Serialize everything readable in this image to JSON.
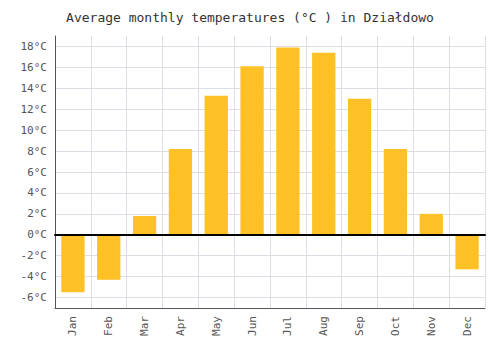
{
  "chart_data": {
    "type": "bar",
    "title": "Average monthly temperatures (°C ) in Działdowo",
    "categories": [
      "Jan",
      "Feb",
      "Mar",
      "Apr",
      "May",
      "Jun",
      "Jul",
      "Aug",
      "Sep",
      "Oct",
      "Nov",
      "Dec"
    ],
    "values": [
      -5.5,
      -4.3,
      1.8,
      8.2,
      13.3,
      16.1,
      17.9,
      17.4,
      13.0,
      8.2,
      2.0,
      -3.3
    ],
    "color": "#FFC125",
    "ylim": [
      -7,
      19
    ],
    "yticks": [
      {
        "value": -6,
        "label": "-6°C"
      },
      {
        "value": -4,
        "label": "-4°C"
      },
      {
        "value": -2,
        "label": "-2°C"
      },
      {
        "value": 0,
        "label": "0°C"
      },
      {
        "value": 2,
        "label": "2°C"
      },
      {
        "value": 4,
        "label": "4°C"
      },
      {
        "value": 6,
        "label": "6°C"
      },
      {
        "value": 8,
        "label": "8°C"
      },
      {
        "value": 10,
        "label": "10°C"
      },
      {
        "value": 12,
        "label": "12°C"
      },
      {
        "value": 14,
        "label": "14°C"
      },
      {
        "value": 16,
        "label": "16°C"
      },
      {
        "value": 18,
        "label": "18°C"
      }
    ],
    "grid": true
  }
}
